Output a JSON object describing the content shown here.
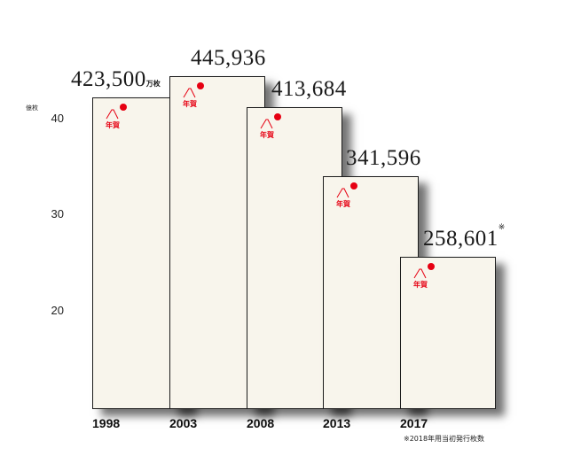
{
  "chart_data": {
    "type": "bar",
    "categories": [
      "1998",
      "2003",
      "2008",
      "2013",
      "2017"
    ],
    "values": [
      423500,
      445936,
      413684,
      341596,
      258601
    ],
    "value_labels": [
      "423,500",
      "445,936",
      "413,684",
      "341,596",
      "258,601"
    ],
    "value_suffix": "万枚",
    "note_mark": "※",
    "y_unit": "億枚",
    "y_ticks": [
      "20",
      "30",
      "40"
    ],
    "ylim": [
      10,
      48
    ],
    "card_text": "年賀",
    "footnote": "※2018年用当初発行枚数",
    "colors": {
      "band": "#e60012",
      "card": "#f8f5ec",
      "stamp": "#e60012"
    }
  }
}
